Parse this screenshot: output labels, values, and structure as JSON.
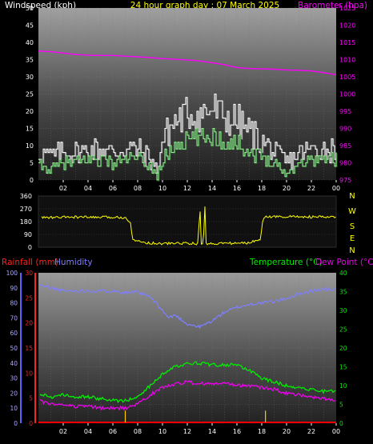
{
  "header": {
    "left_label": "Windspeed (kph)",
    "center_title": "24 hour graph day : 07 March 2025",
    "right_label": "Barometer (hpa)"
  },
  "colors": {
    "background": "#000000",
    "wind_label": "#ffffff",
    "title": "#ffff00",
    "barometer": "#ff00ff",
    "gust": "#ffffff",
    "wind": "#90ee90",
    "wind_shadow": "#555555",
    "direction": "#ffff00",
    "rain": "#ff0000",
    "rain_bar": "#ffcc00",
    "humidity": "#7f7fff",
    "temperature": "#00ee00",
    "dewpoint": "#ee00ee",
    "rain_axis": "#ff2020",
    "humidity_axis": "#6060ff"
  },
  "labels": {
    "rainfall": "Rainfall (mm)",
    "humidity": "Humidity",
    "temperature": "Temperature (°C)",
    "dewpoint": "Dew Point (°C)"
  },
  "chart_data": [
    {
      "type": "line",
      "name": "wind-barometer",
      "x_ticks": [
        "02",
        "04",
        "06",
        "08",
        "10",
        "12",
        "14",
        "16",
        "18",
        "20",
        "22",
        "00"
      ],
      "x_range_hours": [
        0,
        24
      ],
      "y_left": {
        "ticks": [
          "0",
          "5",
          "10",
          "15",
          "20",
          "25",
          "30",
          "35",
          "40",
          "45",
          "50"
        ],
        "range": [
          0,
          50
        ]
      },
      "y_right": {
        "ticks": [
          "975",
          "980",
          "985",
          "990",
          "995",
          "1000",
          "1005",
          "1010",
          "1015",
          "1020",
          "1025"
        ],
        "range": [
          975,
          1025
        ]
      },
      "series": [
        {
          "name": "Barometer (hpa)",
          "axis": "right",
          "x": [
            0,
            1,
            2,
            3,
            4,
            5,
            6,
            7,
            8,
            9,
            10,
            11,
            12,
            13,
            14,
            15,
            16,
            17,
            18,
            19,
            20,
            21,
            22,
            23,
            24
          ],
          "y": [
            1012.5,
            1012.3,
            1011.9,
            1011.5,
            1011.3,
            1011.2,
            1011.2,
            1011.0,
            1010.8,
            1010.6,
            1010.3,
            1010.1,
            1009.9,
            1009.6,
            1009.1,
            1008.5,
            1007.7,
            1007.4,
            1007.3,
            1007.2,
            1007.0,
            1006.9,
            1006.7,
            1006.2,
            1005.6
          ]
        },
        {
          "axis": "left",
          "x": [
            0,
            1,
            2,
            3,
            4,
            5,
            6,
            7,
            8,
            9,
            9.5,
            10,
            11,
            12,
            13,
            14,
            15,
            16,
            17,
            18,
            19,
            20,
            21,
            22,
            23,
            24
          ],
          "y": [
            8,
            7,
            8,
            8,
            9,
            9,
            8,
            9,
            9,
            6,
            3,
            12,
            17,
            19,
            19,
            21,
            18,
            17,
            14,
            11,
            8,
            5,
            8,
            9,
            9,
            9
          ]
        },
        {
          "axis": "left",
          "x": [
            0,
            1,
            2,
            3,
            4,
            5,
            6,
            7,
            8,
            9,
            9.5,
            10,
            11,
            12,
            13,
            14,
            15,
            16,
            17,
            18,
            19,
            20,
            21,
            22,
            23,
            24
          ],
          "y": [
            4,
            3,
            5,
            5,
            6,
            6,
            5,
            6,
            6,
            4,
            1,
            6,
            10,
            12,
            12,
            13,
            11,
            11,
            8,
            7,
            5,
            2,
            5,
            6,
            6,
            6
          ]
        }
      ]
    },
    {
      "type": "line",
      "name": "wind-direction",
      "y_ticks": [
        "0",
        "90",
        "180",
        "270",
        "360"
      ],
      "y_range": [
        0,
        360
      ],
      "compass": [
        "N",
        "W",
        "S",
        "E",
        "N"
      ],
      "series": [
        {
          "axis": "left",
          "x": [
            0,
            1,
            2,
            3,
            4,
            5,
            6,
            7,
            7.4,
            7.6,
            8,
            9,
            10,
            11,
            12,
            12.9,
            13,
            13.1,
            13.3,
            13.4,
            13.5,
            14,
            15,
            16,
            17,
            17.9,
            18.1,
            19,
            20,
            21,
            22,
            23,
            24
          ],
          "y": [
            210,
            208,
            210,
            212,
            210,
            210,
            210,
            210,
            180,
            60,
            40,
            30,
            25,
            28,
            28,
            25,
            350,
            25,
            25,
            350,
            25,
            25,
            28,
            28,
            30,
            60,
            210,
            215,
            215,
            215,
            212,
            212,
            210
          ]
        }
      ]
    },
    {
      "type": "line",
      "name": "temp-humidity-rain",
      "y_rain": {
        "ticks": [
          "0",
          "5",
          "10",
          "15",
          "20",
          "25",
          "30"
        ],
        "range": [
          0,
          30
        ]
      },
      "y_humidity": {
        "ticks": [
          "0",
          "10",
          "20",
          "30",
          "40",
          "50",
          "60",
          "70",
          "80",
          "90",
          "100"
        ],
        "range": [
          0,
          100
        ]
      },
      "y_temp": {
        "ticks": [
          "0",
          "5",
          "10",
          "15",
          "20",
          "25",
          "30",
          "35",
          "40"
        ],
        "range": [
          0,
          40
        ]
      },
      "rain_events": [
        {
          "x": 7.0,
          "y": 2.5
        },
        {
          "x": 18.3,
          "y": 2.5
        }
      ],
      "series": [
        {
          "name": "Humidity",
          "axis": "humidity",
          "x": [
            0,
            1,
            2,
            3,
            4,
            5,
            6,
            7,
            8,
            9,
            10,
            10.5,
            11,
            12,
            12.5,
            13,
            13.5,
            14,
            15,
            16,
            17,
            18,
            19,
            20,
            21,
            22,
            23,
            24
          ],
          "y": [
            92,
            90,
            88,
            88,
            88,
            88,
            88,
            87,
            87,
            84,
            75,
            70,
            72,
            66,
            65,
            64,
            66,
            68,
            74,
            77,
            79,
            80,
            81,
            83,
            86,
            88,
            89,
            89
          ]
        },
        {
          "name": "Temperature (°C)",
          "axis": "temp",
          "x": [
            0,
            1,
            2,
            3,
            4,
            5,
            6,
            7,
            8,
            9,
            10,
            11,
            12,
            13,
            14,
            15,
            16,
            17,
            17.5,
            18,
            19,
            20,
            21,
            22,
            23,
            24
          ],
          "y": [
            8,
            7,
            7.5,
            7,
            7,
            6.5,
            6,
            6,
            7,
            10,
            13,
            15,
            16,
            16,
            15.5,
            15.5,
            15.5,
            14,
            13,
            12,
            11,
            10,
            9.5,
            9,
            8.5,
            8.5
          ]
        },
        {
          "name": "Dew Point (°C)",
          "axis": "temp",
          "x": [
            0,
            1,
            2,
            3,
            4,
            5,
            6,
            7,
            8,
            9,
            10,
            11,
            12,
            13,
            14,
            15,
            16,
            17,
            18,
            19,
            20,
            21,
            22,
            23,
            24
          ],
          "y": [
            6,
            5,
            5,
            4.5,
            4.5,
            4,
            4,
            4,
            5,
            7.5,
            9.5,
            10.5,
            11,
            10.5,
            10.5,
            10.5,
            10,
            10,
            9.5,
            9,
            8,
            7.5,
            7,
            6.5,
            6
          ]
        }
      ]
    }
  ]
}
